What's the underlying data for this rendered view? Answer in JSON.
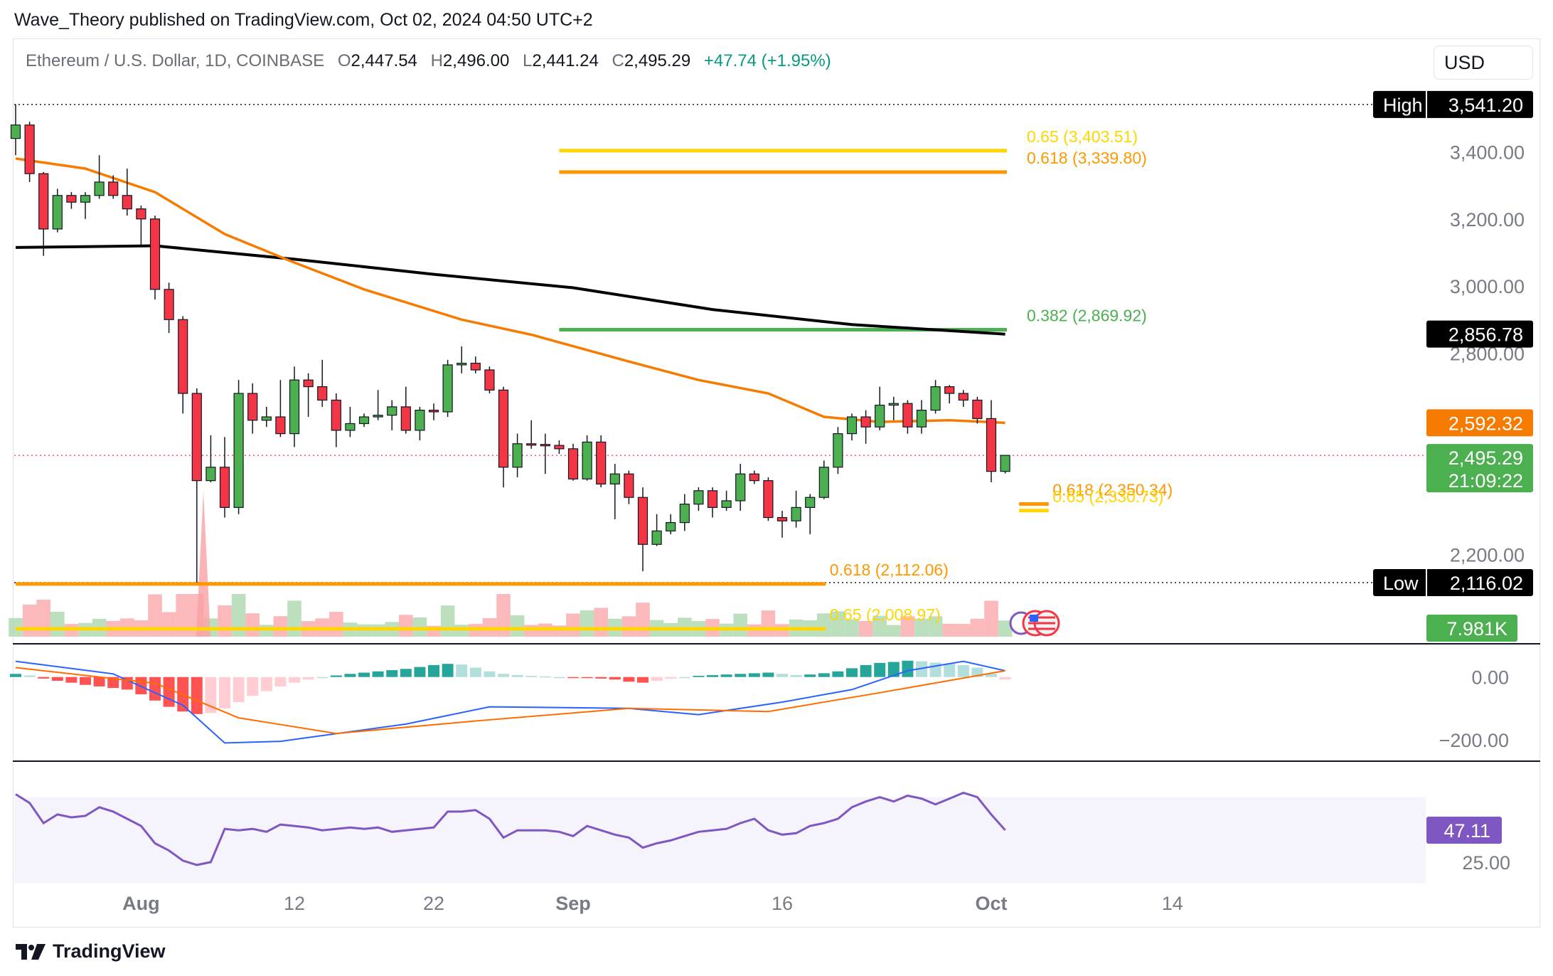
{
  "publisher": "Wave_Theory published on TradingView.com, Oct 02, 2024 04:50 UTC+2",
  "legend": {
    "symbol": "Ethereum / U.S. Dollar, 1D, COINBASE",
    "o_label": "O",
    "o": "2,447.54",
    "h_label": "H",
    "h": "2,496.00",
    "l_label": "L",
    "l": "2,441.24",
    "c_label": "C",
    "c": "2,495.29",
    "change": "+47.74 (+1.95%)"
  },
  "currency": "USD",
  "footer_logo_text": "TradingView",
  "colors": {
    "up": "#4caf50",
    "down": "#f23645",
    "ema50": "#f57c00",
    "ema200": "#000000",
    "fib_gold": "#ffd600",
    "fib_orange": "#ff9800",
    "fib_green": "#4caf50",
    "macd": "#2962ff",
    "signal": "#ff6d00",
    "rsi": "#7e57c2"
  },
  "chart_data": [
    {
      "type": "candlestick",
      "title": "Ethereum / U.S. Dollar, 1D, COINBASE",
      "x_ticks": [
        "Aug",
        "12",
        "22",
        "Sep",
        "16",
        "Oct",
        "14"
      ],
      "y_ticks": [
        "3,400.00",
        "3,200.00",
        "3,000.00",
        "2,800.00",
        "2,200.00"
      ],
      "ylim": [
        2080,
        3560
      ],
      "xlim": [
        "2024-07-23",
        "2024-10-31"
      ],
      "ohlc": [
        {
          "date": "2024-07-23",
          "o": 3440,
          "h": 3541,
          "l": 3390,
          "c": 3480
        },
        {
          "date": "2024-07-24",
          "o": 3480,
          "h": 3490,
          "l": 3310,
          "c": 3335
        },
        {
          "date": "2024-07-25",
          "o": 3335,
          "h": 3340,
          "l": 3090,
          "c": 3170
        },
        {
          "date": "2024-07-26",
          "o": 3170,
          "h": 3290,
          "l": 3160,
          "c": 3270
        },
        {
          "date": "2024-07-27",
          "o": 3270,
          "h": 3280,
          "l": 3230,
          "c": 3250
        },
        {
          "date": "2024-07-28",
          "o": 3250,
          "h": 3280,
          "l": 3200,
          "c": 3270
        },
        {
          "date": "2024-07-29",
          "o": 3270,
          "h": 3390,
          "l": 3260,
          "c": 3310
        },
        {
          "date": "2024-07-30",
          "o": 3310,
          "h": 3330,
          "l": 3260,
          "c": 3270
        },
        {
          "date": "2024-07-31",
          "o": 3270,
          "h": 3350,
          "l": 3210,
          "c": 3230
        },
        {
          "date": "2024-08-01",
          "o": 3230,
          "h": 3240,
          "l": 3120,
          "c": 3200
        },
        {
          "date": "2024-08-02",
          "o": 3200,
          "h": 3210,
          "l": 2960,
          "c": 2990
        },
        {
          "date": "2024-08-03",
          "o": 2990,
          "h": 3010,
          "l": 2860,
          "c": 2900
        },
        {
          "date": "2024-08-04",
          "o": 2900,
          "h": 2910,
          "l": 2620,
          "c": 2680
        },
        {
          "date": "2024-08-05",
          "o": 2680,
          "h": 2695,
          "l": 2116,
          "c": 2420
        },
        {
          "date": "2024-08-06",
          "o": 2420,
          "h": 2555,
          "l": 2415,
          "c": 2460
        },
        {
          "date": "2024-08-07",
          "o": 2460,
          "h": 2550,
          "l": 2310,
          "c": 2340
        },
        {
          "date": "2024-08-08",
          "o": 2340,
          "h": 2720,
          "l": 2320,
          "c": 2680
        },
        {
          "date": "2024-08-09",
          "o": 2680,
          "h": 2710,
          "l": 2560,
          "c": 2600
        },
        {
          "date": "2024-08-10",
          "o": 2600,
          "h": 2640,
          "l": 2580,
          "c": 2610
        },
        {
          "date": "2024-08-11",
          "o": 2610,
          "h": 2720,
          "l": 2550,
          "c": 2560
        },
        {
          "date": "2024-08-12",
          "o": 2560,
          "h": 2760,
          "l": 2520,
          "c": 2720
        },
        {
          "date": "2024-08-13",
          "o": 2720,
          "h": 2740,
          "l": 2610,
          "c": 2700
        },
        {
          "date": "2024-08-14",
          "o": 2700,
          "h": 2780,
          "l": 2640,
          "c": 2660
        },
        {
          "date": "2024-08-15",
          "o": 2660,
          "h": 2680,
          "l": 2520,
          "c": 2570
        },
        {
          "date": "2024-08-16",
          "o": 2570,
          "h": 2640,
          "l": 2550,
          "c": 2590
        },
        {
          "date": "2024-08-17",
          "o": 2590,
          "h": 2620,
          "l": 2580,
          "c": 2610
        },
        {
          "date": "2024-08-18",
          "o": 2610,
          "h": 2690,
          "l": 2600,
          "c": 2615
        },
        {
          "date": "2024-08-19",
          "o": 2615,
          "h": 2660,
          "l": 2570,
          "c": 2640
        },
        {
          "date": "2024-08-20",
          "o": 2640,
          "h": 2700,
          "l": 2560,
          "c": 2570
        },
        {
          "date": "2024-08-21",
          "o": 2570,
          "h": 2640,
          "l": 2540,
          "c": 2630
        },
        {
          "date": "2024-08-22",
          "o": 2630,
          "h": 2650,
          "l": 2600,
          "c": 2625
        },
        {
          "date": "2024-08-23",
          "o": 2625,
          "h": 2780,
          "l": 2610,
          "c": 2765
        },
        {
          "date": "2024-08-24",
          "o": 2765,
          "h": 2820,
          "l": 2740,
          "c": 2770
        },
        {
          "date": "2024-08-25",
          "o": 2770,
          "h": 2790,
          "l": 2740,
          "c": 2750
        },
        {
          "date": "2024-08-26",
          "o": 2750,
          "h": 2760,
          "l": 2680,
          "c": 2690
        },
        {
          "date": "2024-08-27",
          "o": 2690,
          "h": 2700,
          "l": 2400,
          "c": 2460
        },
        {
          "date": "2024-08-28",
          "o": 2460,
          "h": 2560,
          "l": 2430,
          "c": 2530
        },
        {
          "date": "2024-08-29",
          "o": 2530,
          "h": 2600,
          "l": 2515,
          "c": 2528
        },
        {
          "date": "2024-08-30",
          "o": 2528,
          "h": 2560,
          "l": 2440,
          "c": 2525
        },
        {
          "date": "2024-08-31",
          "o": 2525,
          "h": 2540,
          "l": 2500,
          "c": 2515
        },
        {
          "date": "2024-09-01",
          "o": 2515,
          "h": 2530,
          "l": 2420,
          "c": 2425
        },
        {
          "date": "2024-09-02",
          "o": 2425,
          "h": 2555,
          "l": 2420,
          "c": 2535
        },
        {
          "date": "2024-09-03",
          "o": 2535,
          "h": 2555,
          "l": 2400,
          "c": 2410
        },
        {
          "date": "2024-09-04",
          "o": 2410,
          "h": 2470,
          "l": 2305,
          "c": 2440
        },
        {
          "date": "2024-09-05",
          "o": 2440,
          "h": 2450,
          "l": 2350,
          "c": 2370
        },
        {
          "date": "2024-09-06",
          "o": 2370,
          "h": 2400,
          "l": 2150,
          "c": 2230
        },
        {
          "date": "2024-09-07",
          "o": 2230,
          "h": 2320,
          "l": 2225,
          "c": 2270
        },
        {
          "date": "2024-09-08",
          "o": 2270,
          "h": 2320,
          "l": 2260,
          "c": 2295
        },
        {
          "date": "2024-09-09",
          "o": 2295,
          "h": 2380,
          "l": 2270,
          "c": 2350
        },
        {
          "date": "2024-09-10",
          "o": 2350,
          "h": 2400,
          "l": 2330,
          "c": 2390
        },
        {
          "date": "2024-09-11",
          "o": 2390,
          "h": 2400,
          "l": 2310,
          "c": 2340
        },
        {
          "date": "2024-09-12",
          "o": 2340,
          "h": 2390,
          "l": 2330,
          "c": 2360
        },
        {
          "date": "2024-09-13",
          "o": 2360,
          "h": 2470,
          "l": 2330,
          "c": 2440
        },
        {
          "date": "2024-09-14",
          "o": 2440,
          "h": 2450,
          "l": 2410,
          "c": 2420
        },
        {
          "date": "2024-09-15",
          "o": 2420,
          "h": 2430,
          "l": 2300,
          "c": 2310
        },
        {
          "date": "2024-09-16",
          "o": 2310,
          "h": 2330,
          "l": 2250,
          "c": 2300
        },
        {
          "date": "2024-09-17",
          "o": 2300,
          "h": 2390,
          "l": 2280,
          "c": 2340
        },
        {
          "date": "2024-09-18",
          "o": 2340,
          "h": 2380,
          "l": 2260,
          "c": 2370
        },
        {
          "date": "2024-09-19",
          "o": 2370,
          "h": 2480,
          "l": 2365,
          "c": 2460
        },
        {
          "date": "2024-09-20",
          "o": 2460,
          "h": 2580,
          "l": 2440,
          "c": 2560
        },
        {
          "date": "2024-09-21",
          "o": 2560,
          "h": 2620,
          "l": 2540,
          "c": 2610
        },
        {
          "date": "2024-09-22",
          "o": 2610,
          "h": 2630,
          "l": 2530,
          "c": 2580
        },
        {
          "date": "2024-09-23",
          "o": 2580,
          "h": 2700,
          "l": 2570,
          "c": 2645
        },
        {
          "date": "2024-09-24",
          "o": 2645,
          "h": 2670,
          "l": 2600,
          "c": 2650
        },
        {
          "date": "2024-09-25",
          "o": 2650,
          "h": 2660,
          "l": 2560,
          "c": 2580
        },
        {
          "date": "2024-09-26",
          "o": 2580,
          "h": 2660,
          "l": 2560,
          "c": 2630
        },
        {
          "date": "2024-09-27",
          "o": 2630,
          "h": 2720,
          "l": 2620,
          "c": 2700
        },
        {
          "date": "2024-09-28",
          "o": 2700,
          "h": 2705,
          "l": 2650,
          "c": 2680
        },
        {
          "date": "2024-09-29",
          "o": 2680,
          "h": 2690,
          "l": 2640,
          "c": 2660
        },
        {
          "date": "2024-09-30",
          "o": 2660,
          "h": 2670,
          "l": 2590,
          "c": 2605
        },
        {
          "date": "2024-10-01",
          "o": 2605,
          "h": 2660,
          "l": 2415,
          "c": 2447.54
        },
        {
          "date": "2024-10-02",
          "o": 2447.54,
          "h": 2496.0,
          "l": 2441.24,
          "c": 2495.29
        }
      ],
      "ema50": [
        {
          "date": "2024-07-23",
          "v": 3380
        },
        {
          "date": "2024-07-28",
          "v": 3350
        },
        {
          "date": "2024-08-02",
          "v": 3280
        },
        {
          "date": "2024-08-07",
          "v": 3155
        },
        {
          "date": "2024-08-12",
          "v": 3070
        },
        {
          "date": "2024-08-17",
          "v": 2990
        },
        {
          "date": "2024-08-24",
          "v": 2900
        },
        {
          "date": "2024-08-29",
          "v": 2855
        },
        {
          "date": "2024-09-05",
          "v": 2775
        },
        {
          "date": "2024-09-10",
          "v": 2720
        },
        {
          "date": "2024-09-15",
          "v": 2680
        },
        {
          "date": "2024-09-19",
          "v": 2610
        },
        {
          "date": "2024-09-23",
          "v": 2595
        },
        {
          "date": "2024-09-28",
          "v": 2600
        },
        {
          "date": "2024-10-02",
          "v": 2592.32
        }
      ],
      "ema200": [
        {
          "date": "2024-07-23",
          "v": 3115
        },
        {
          "date": "2024-08-02",
          "v": 3120
        },
        {
          "date": "2024-08-12",
          "v": 3080
        },
        {
          "date": "2024-08-22",
          "v": 3035
        },
        {
          "date": "2024-09-01",
          "v": 2995
        },
        {
          "date": "2024-09-11",
          "v": 2930
        },
        {
          "date": "2024-09-21",
          "v": 2885
        },
        {
          "date": "2024-10-02",
          "v": 2856.78
        }
      ],
      "fib_levels": [
        {
          "label": "0.65 (3,403.51)",
          "value": 3403.51,
          "color": "#ffd600",
          "x0": "2024-08-31",
          "x1": "2024-10-01",
          "label_x": "2024-10-01"
        },
        {
          "label": "0.618 (3,339.80)",
          "value": 3339.8,
          "color": "#ff9800",
          "x0": "2024-08-31",
          "x1": "2024-10-01",
          "label_x": "2024-10-01"
        },
        {
          "label": "0.382 (2,869.92)",
          "value": 2869.92,
          "color": "#4caf50",
          "x0": "2024-08-31",
          "x1": "2024-10-01",
          "label_x": "2024-10-01"
        },
        {
          "label": "0.618 (2,350.34)",
          "value": 2350.34,
          "color": "#ff9800",
          "x0": "2024-10-03",
          "x1": "2024-10-04",
          "label_x": "2024-10-05"
        },
        {
          "label": "0.65 (2,330.73)",
          "value": 2330.73,
          "color": "#ffd600",
          "x0": "2024-10-03",
          "x1": "2024-10-04",
          "label_x": "2024-10-05"
        },
        {
          "label": "0.618 (2,112.06)",
          "value": 2112.06,
          "color": "#ff9800",
          "x0": "2024-07-23",
          "x1": "2024-09-18",
          "label_x": "2024-09-19"
        },
        {
          "label": "0.65 (2,008.97)",
          "value": 2008.97,
          "color": "#ffd600",
          "x0": "2024-07-23",
          "x1": "2024-09-18",
          "label_x": "2024-09-19"
        }
      ],
      "price_tags": [
        {
          "label": "High",
          "value": "3,541.20",
          "y": 3541.2,
          "color": "#000000"
        },
        {
          "label": "",
          "value": "2,856.78",
          "y": 2856.78,
          "color": "#000000"
        },
        {
          "label": "",
          "value": "2,592.32",
          "y": 2592.32,
          "color": "#f57c00"
        },
        {
          "label": "",
          "value": "2,495.29",
          "y": 2495.29,
          "color": "#4caf50",
          "extra": "21:09:22"
        },
        {
          "label": "Low",
          "value": "2,116.02",
          "y": 2116.02,
          "color": "#000000"
        }
      ],
      "volume_tag": "7.981K"
    },
    {
      "type": "line",
      "name": "MACD",
      "y_ticks": [
        "0.00",
        "−200.00"
      ],
      "ylim": [
        -250,
        90
      ],
      "histogram_values": [
        10,
        5,
        -5,
        -12,
        -18,
        -25,
        -30,
        -35,
        -40,
        -55,
        -75,
        -95,
        -110,
        -118,
        -115,
        -100,
        -80,
        -60,
        -45,
        -30,
        -18,
        -8,
        0,
        5,
        10,
        14,
        18,
        22,
        26,
        32,
        38,
        42,
        40,
        30,
        18,
        10,
        6,
        4,
        2,
        0,
        -2,
        -3,
        -5,
        -8,
        -15,
        -18,
        -12,
        -5,
        0,
        4,
        6,
        8,
        10,
        12,
        14,
        10,
        6,
        8,
        12,
        18,
        28,
        38,
        45,
        48,
        52,
        50,
        46,
        42,
        38,
        30,
        10,
        -8
      ],
      "macd": [
        {
          "date": "2024-07-23",
          "v": 50
        },
        {
          "date": "2024-07-30",
          "v": 10
        },
        {
          "date": "2024-08-04",
          "v": -90
        },
        {
          "date": "2024-08-07",
          "v": -210
        },
        {
          "date": "2024-08-11",
          "v": -205
        },
        {
          "date": "2024-08-20",
          "v": -150
        },
        {
          "date": "2024-08-26",
          "v": -95
        },
        {
          "date": "2024-09-05",
          "v": -100
        },
        {
          "date": "2024-09-10",
          "v": -120
        },
        {
          "date": "2024-09-16",
          "v": -80
        },
        {
          "date": "2024-09-21",
          "v": -40
        },
        {
          "date": "2024-09-25",
          "v": 20
        },
        {
          "date": "2024-09-29",
          "v": 50
        },
        {
          "date": "2024-10-02",
          "v": 20
        }
      ],
      "signal": [
        {
          "date": "2024-07-23",
          "v": 30
        },
        {
          "date": "2024-08-02",
          "v": -20
        },
        {
          "date": "2024-08-08",
          "v": -130
        },
        {
          "date": "2024-08-15",
          "v": -180
        },
        {
          "date": "2024-08-25",
          "v": -140
        },
        {
          "date": "2024-09-05",
          "v": -100
        },
        {
          "date": "2024-09-15",
          "v": -110
        },
        {
          "date": "2024-09-23",
          "v": -50
        },
        {
          "date": "2024-10-02",
          "v": 20
        }
      ]
    },
    {
      "type": "line",
      "name": "RSI",
      "y_ticks": [
        "25.00"
      ],
      "ylim": [
        20,
        90
      ],
      "current": "47.11",
      "band": [
        30,
        70
      ],
      "values": [
        72,
        66,
        52,
        58,
        56,
        57,
        63,
        60,
        55,
        50,
        38,
        33,
        26,
        23,
        25,
        48,
        47,
        48,
        46,
        51,
        50,
        49,
        47,
        48,
        49,
        48,
        49,
        46,
        47,
        48,
        49,
        60,
        60,
        61,
        55,
        42,
        47,
        47,
        47,
        46,
        43,
        50,
        47,
        44,
        42,
        35,
        38,
        40,
        43,
        46,
        47,
        48,
        52,
        55,
        47,
        44,
        45,
        50,
        52,
        55,
        63,
        67,
        70,
        67,
        71,
        69,
        65,
        69,
        73,
        70,
        58,
        47.11
      ]
    }
  ]
}
